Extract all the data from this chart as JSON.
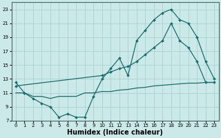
{
  "bg_color": "#cce9e9",
  "grid_color": "#aad0d0",
  "line_color": "#1a6b6b",
  "line1_x": [
    0,
    1,
    2,
    3,
    4,
    5,
    6,
    7,
    8,
    9,
    10,
    11,
    12,
    13,
    14,
    15,
    16,
    17,
    18,
    19,
    20,
    21,
    22,
    23
  ],
  "line1_y": [
    12.5,
    11.0,
    10.2,
    9.5,
    9.0,
    7.5,
    8.0,
    7.5,
    7.5,
    10.5,
    13.0,
    14.5,
    16.0,
    13.5,
    18.5,
    20.0,
    21.5,
    22.5,
    23.0,
    21.5,
    21.0,
    19.0,
    15.5,
    13.0
  ],
  "line2_x": [
    0,
    10,
    11,
    12,
    13,
    14,
    15,
    16,
    17,
    18,
    19,
    20,
    21,
    22,
    23
  ],
  "line2_y": [
    12.0,
    13.5,
    14.0,
    14.5,
    14.8,
    15.5,
    16.5,
    17.5,
    18.5,
    21.0,
    18.5,
    17.5,
    15.5,
    12.5,
    12.5
  ],
  "line3_x": [
    0,
    1,
    2,
    3,
    4,
    5,
    6,
    7,
    8,
    9,
    10,
    11,
    12,
    13,
    14,
    15,
    16,
    17,
    18,
    19,
    20,
    21,
    22,
    23
  ],
  "line3_y": [
    11.0,
    11.0,
    10.5,
    10.5,
    10.2,
    10.5,
    10.5,
    10.5,
    11.0,
    11.0,
    11.2,
    11.2,
    11.4,
    11.5,
    11.7,
    11.8,
    12.0,
    12.1,
    12.2,
    12.3,
    12.4,
    12.4,
    12.5,
    12.5
  ],
  "xlabel": "Humidex (Indice chaleur)",
  "xlabel_fontsize": 7,
  "xlim": [
    -0.5,
    23.5
  ],
  "ylim": [
    7,
    24
  ],
  "yticks": [
    7,
    9,
    11,
    13,
    15,
    17,
    19,
    21,
    23
  ],
  "xticks": [
    0,
    1,
    2,
    3,
    4,
    5,
    6,
    7,
    8,
    9,
    10,
    11,
    12,
    13,
    14,
    15,
    16,
    17,
    18,
    19,
    20,
    21,
    22,
    23
  ],
  "tick_fontsize": 5.0
}
